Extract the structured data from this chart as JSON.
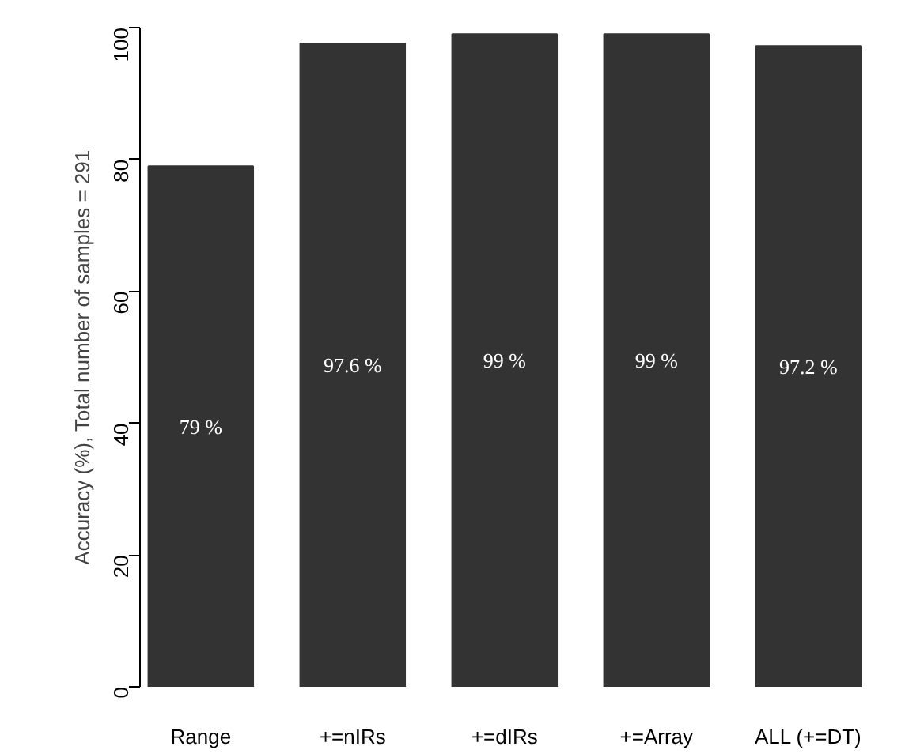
{
  "chart_data": {
    "type": "bar",
    "ylabel": "Accuracy (%), Total number of samples = 291",
    "categories": [
      "Range",
      "+=nIRs",
      "+=dIRs",
      "+=Array",
      "ALL (+=DT)"
    ],
    "values": [
      79,
      97.6,
      99,
      99,
      97.2
    ],
    "color": "#333333",
    "value_labels": [
      "79 %",
      "97.6 %",
      "99 %",
      "99 %",
      "97.2 %"
    ],
    "ylim": [
      0,
      100
    ],
    "yticks": [
      0,
      20,
      40,
      60,
      80,
      100
    ]
  }
}
